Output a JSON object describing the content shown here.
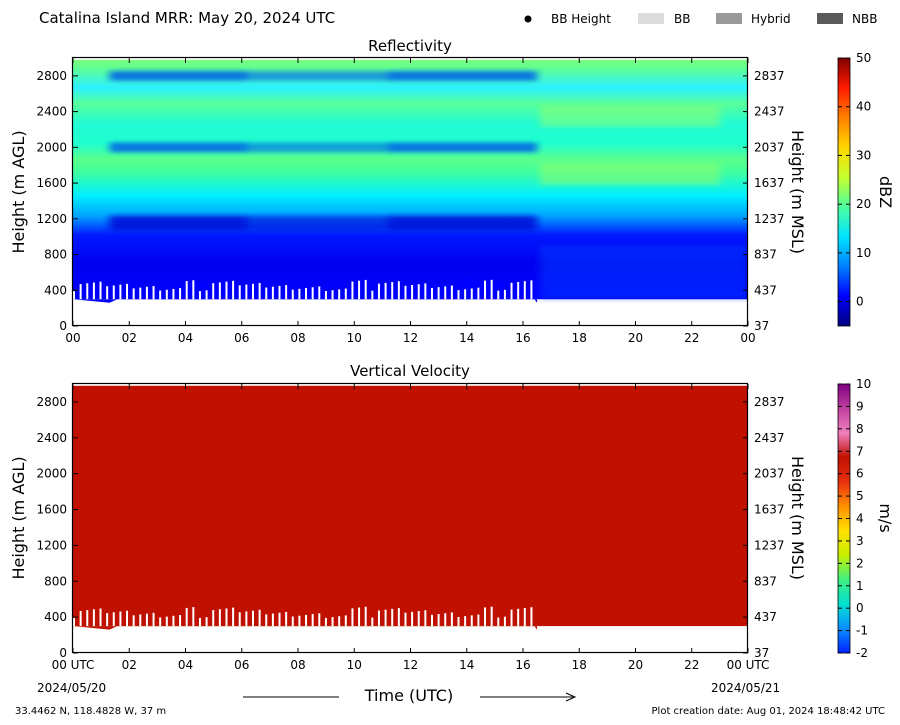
{
  "header": {
    "title": "Catalina Island MRR:  May 20, 2024 UTC",
    "legend": [
      {
        "label": "BB Height",
        "swatch": "dot",
        "color": "#000000"
      },
      {
        "label": "BB",
        "swatch": "box",
        "color": "#dcdcdc"
      },
      {
        "label": "Hybrid",
        "swatch": "box",
        "color": "#9a9a9a"
      },
      {
        "label": "NBB",
        "swatch": "box",
        "color": "#5a5a5a"
      }
    ]
  },
  "footer": {
    "location": "33.4462 N, 118.4828 W, 37 m",
    "creation": "Plot creation date: Aug 01, 2024 18:48:42 UTC",
    "xlabel": "Time (UTC)",
    "start_date": "2024/05/20",
    "end_date": "2024/05/21"
  },
  "chart_data": [
    {
      "type": "heatmap",
      "title": "Reflectivity",
      "ylabel": "Height (m AGL)",
      "y2label": "Height (m MSL)",
      "colorbar_label": "dBZ",
      "x_ticks": [
        "00",
        "02",
        "04",
        "06",
        "08",
        "10",
        "12",
        "14",
        "16",
        "18",
        "20",
        "22",
        "00"
      ],
      "y_ticks": [
        0,
        400,
        800,
        1200,
        1600,
        2000,
        2400,
        2800
      ],
      "y2_ticks": [
        37,
        437,
        837,
        1237,
        1637,
        2037,
        2437,
        2837
      ],
      "xlim": [
        0,
        24
      ],
      "ylim": [
        0,
        3000
      ],
      "data_top_m": 2980,
      "data_bottom_m": 300,
      "colorbar": {
        "min": -5,
        "max": 50,
        "ticks": [
          0,
          10,
          20,
          30,
          40,
          50
        ]
      },
      "colors": [
        "#00007f",
        "#0000ff",
        "#0080ff",
        "#00e5ff",
        "#4dff9e",
        "#c6ff2e",
        "#ffd700",
        "#ff7f00",
        "#ff1a00",
        "#7f0000"
      ],
      "echo_top_profile_hours": [
        0,
        1.3,
        2,
        3,
        4,
        4.6,
        5,
        6,
        7,
        8,
        8.5,
        9,
        10,
        10.5,
        11,
        11.5,
        12,
        13,
        14,
        15,
        16,
        16.5
      ],
      "echo_top_profile_m": [
        300,
        300,
        360,
        430,
        480,
        530,
        500,
        450,
        400,
        470,
        420,
        360,
        430,
        440,
        350,
        400,
        490,
        510,
        530,
        520,
        470,
        300
      ],
      "low_reflectivity_bands_m": [
        1150,
        2000,
        2800
      ],
      "high_reflectivity_bands_m": [
        1700,
        2350
      ]
    },
    {
      "type": "heatmap",
      "title": "Vertical Velocity",
      "ylabel": "Height (m AGL)",
      "y2label": "Height (m MSL)",
      "colorbar_label": "m/s",
      "x_ticks": [
        "00 UTC",
        "02",
        "04",
        "06",
        "08",
        "10",
        "12",
        "14",
        "16",
        "18",
        "20",
        "22",
        "00 UTC"
      ],
      "y_ticks": [
        0,
        400,
        800,
        1200,
        1600,
        2000,
        2400,
        2800
      ],
      "y2_ticks": [
        37,
        437,
        837,
        1237,
        1637,
        2037,
        2437,
        2837
      ],
      "xlim": [
        0,
        24
      ],
      "ylim": [
        0,
        3000
      ],
      "data_top_m": 2980,
      "data_bottom_m": 300,
      "dominant_value": 6,
      "colorbar": {
        "min": -2,
        "max": 10,
        "ticks": [
          -2,
          -1,
          0,
          1,
          2,
          3,
          4,
          5,
          6,
          7,
          8,
          9,
          10
        ]
      },
      "colors": [
        "#0022ff",
        "#0a8fff",
        "#00e0d0",
        "#40f080",
        "#c8f000",
        "#ffe000",
        "#ff9000",
        "#e83010",
        "#c01000",
        "#f080c0",
        "#c040a0",
        "#800080"
      ],
      "echo_top_profile_hours": [
        0,
        1.3,
        2,
        3,
        4,
        4.6,
        5,
        6,
        7,
        8,
        8.5,
        9,
        10,
        10.5,
        11,
        11.5,
        12,
        13,
        14,
        15,
        16,
        16.5
      ],
      "echo_top_profile_m": [
        300,
        300,
        360,
        430,
        480,
        560,
        500,
        450,
        400,
        470,
        420,
        360,
        430,
        440,
        350,
        400,
        490,
        510,
        560,
        540,
        470,
        300
      ]
    }
  ]
}
